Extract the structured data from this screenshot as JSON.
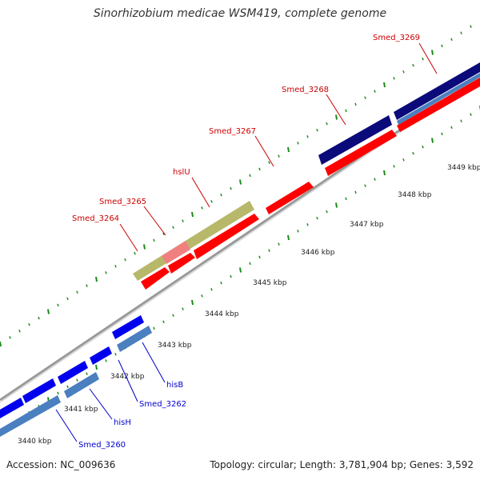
{
  "title": "Sinorhizobium medicae WSM419, complete genome",
  "footer": {
    "accession": "Accession: NC_009636",
    "summary": "Topology: circular; Length: 3,781,904 bp; Genes: 3,592"
  },
  "colors": {
    "forward_gene": "#ff0000",
    "reverse_gene": "#0000ff",
    "label_forward": "#cc0000",
    "label_reverse": "#0000cc",
    "tick": "#1a8a1a",
    "backbone": "#888888"
  },
  "scale_labels": [
    "3440 kbp",
    "3441 kbp",
    "3442 kbp",
    "3443 kbp",
    "3444 kbp",
    "3445 kbp",
    "3446 kbp",
    "3447 kbp",
    "3448 kbp",
    "3449 kbp"
  ],
  "gene_labels": {
    "forward": [
      "Smed_3264",
      "Smed_3265",
      "hslU",
      "Smed_3267",
      "Smed_3268",
      "Smed_3269"
    ],
    "reverse": [
      "hisB",
      "Smed_3262",
      "hisH",
      "Smed_3260"
    ]
  }
}
